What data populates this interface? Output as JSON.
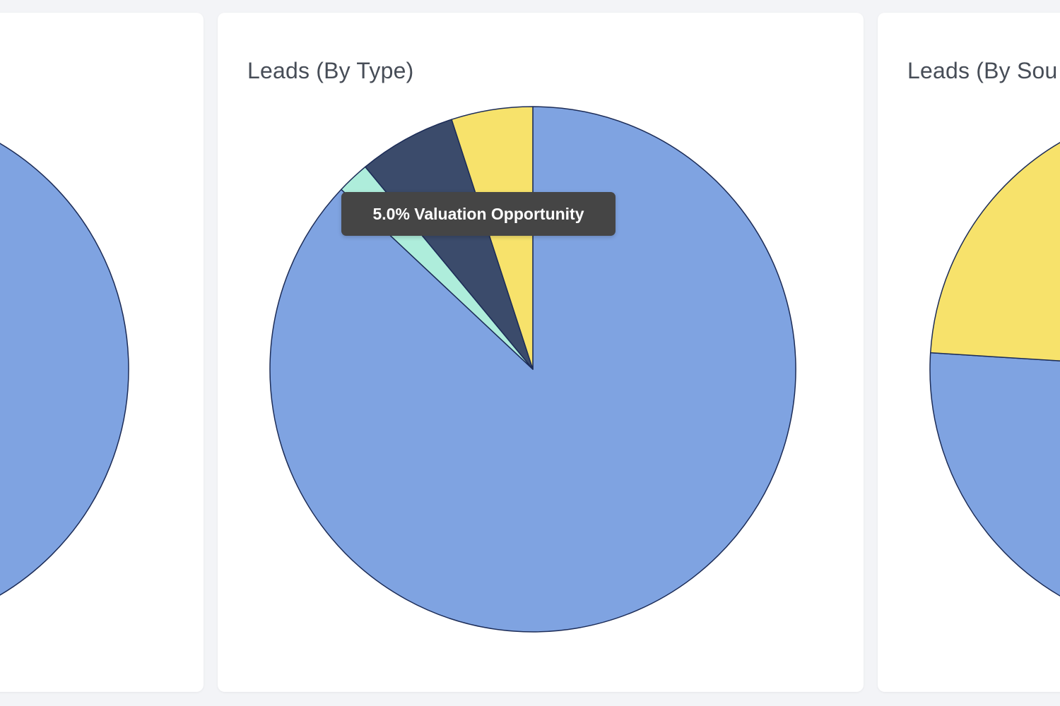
{
  "colors": {
    "background": "#f3f4f7",
    "card": "#ffffff",
    "title_text": "#474d57",
    "slice_stroke": "#1c2c57",
    "tooltip_bg": "#454545",
    "tooltip_text": "#ffffff"
  },
  "cards": {
    "left": {
      "title": "",
      "chart_data": {
        "type": "pie",
        "title": "",
        "slices": [
          {
            "value": 100,
            "color": "#7fa3e1"
          }
        ]
      }
    },
    "middle": {
      "title": "Leads (By Type)",
      "tooltip": "5.0% Valuation Opportunity",
      "chart_data": {
        "type": "pie",
        "title": "Leads (By Type)",
        "slices": [
          {
            "value": 87.0,
            "color": "#7fa3e1"
          },
          {
            "value": 2.0,
            "color": "#aeeddb"
          },
          {
            "value": 6.0,
            "color": "#3b4b6b"
          },
          {
            "value": 5.0,
            "color": "#f7e26b",
            "label": "Valuation Opportunity"
          }
        ]
      }
    },
    "right": {
      "title": "Leads (By Sou",
      "chart_data": {
        "type": "pie",
        "title": "Leads (By Sou",
        "slices": [
          {
            "value": 76.0,
            "color": "#7fa3e1"
          },
          {
            "value": 24.0,
            "color": "#f7e26b"
          }
        ]
      }
    }
  }
}
